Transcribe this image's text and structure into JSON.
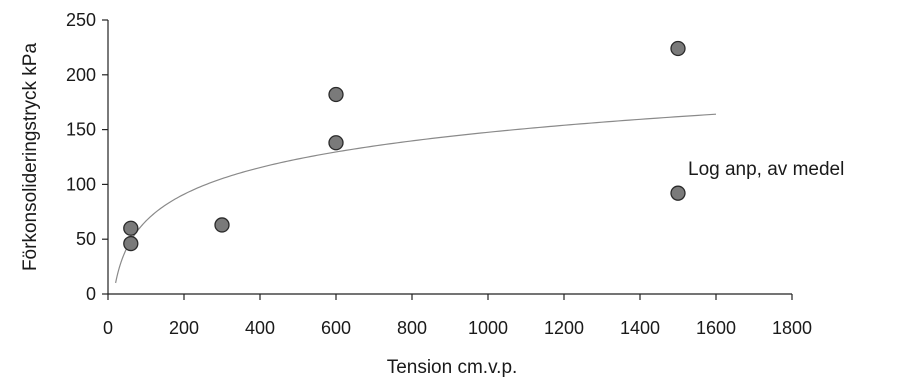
{
  "chart_data": {
    "type": "scatter",
    "xlabel": "Tension cm.v.p.",
    "ylabel": "Förkonsolideringstryck kPa",
    "xlim": [
      0,
      1800
    ],
    "ylim": [
      0,
      250
    ],
    "xticks": [
      0,
      200,
      400,
      600,
      800,
      1000,
      1200,
      1400,
      1600,
      1800
    ],
    "yticks": [
      0,
      50,
      100,
      150,
      200,
      250
    ],
    "x_tick_labels": [
      "0",
      "200",
      "400",
      "600",
      "800",
      "1000",
      "1200",
      "1400",
      "1600",
      "1800"
    ],
    "y_tick_labels": [
      "0",
      "50",
      "100",
      "150",
      "200",
      "250"
    ],
    "grid": false,
    "series": [
      {
        "type": "scatter",
        "marker_color": "#7a7a7a",
        "points": [
          {
            "x": 60,
            "y": 60
          },
          {
            "x": 60,
            "y": 46
          },
          {
            "x": 300,
            "y": 63
          },
          {
            "x": 600,
            "y": 182
          },
          {
            "x": 600,
            "y": 138
          },
          {
            "x": 1500,
            "y": 224
          },
          {
            "x": 1500,
            "y": 92
          }
        ]
      },
      {
        "type": "line",
        "curve": "logarithmic",
        "line_color": "#8a8a8a",
        "x_range": [
          20,
          1600
        ],
        "fit": {
          "a": 35.14,
          "b": -95.2
        }
      }
    ],
    "annotation": "Log anp, av medel"
  }
}
